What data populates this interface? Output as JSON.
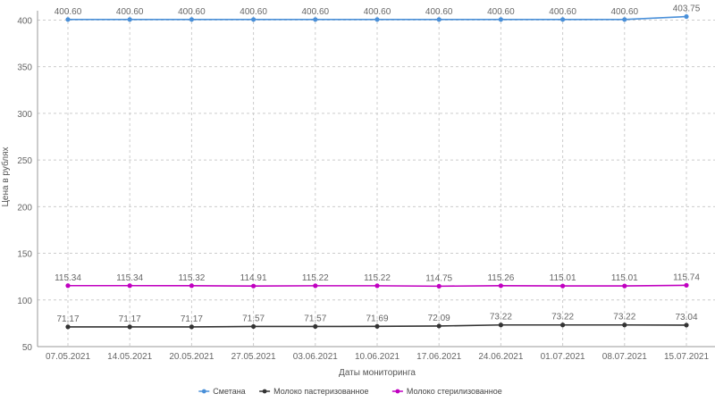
{
  "chart_data": {
    "type": "line",
    "title": "",
    "xlabel": "Даты мониторинга",
    "ylabel": "Цена в рублях",
    "ylim": [
      50,
      410
    ],
    "yticks": [
      50,
      100,
      150,
      200,
      250,
      300,
      350,
      400
    ],
    "grid": true,
    "legend_position": "bottom-center",
    "categories": [
      "07.05.2021",
      "14.05.2021",
      "20.05.2021",
      "27.05.2021",
      "03.06.2021",
      "10.06.2021",
      "17.06.2021",
      "24.06.2021",
      "01.07.2021",
      "08.07.2021",
      "15.07.2021"
    ],
    "series": [
      {
        "name": "Сметана",
        "color": "#4a90d9",
        "values": [
          400.6,
          400.6,
          400.6,
          400.6,
          400.6,
          400.6,
          400.6,
          400.6,
          400.6,
          400.6,
          403.75
        ],
        "labels": [
          "400.60",
          "400.60",
          "400.60",
          "400.60",
          "400.60",
          "400.60",
          "400.60",
          "400.60",
          "400.60",
          "400.60",
          "403.75"
        ]
      },
      {
        "name": "Молоко пастеризованное",
        "color": "#333333",
        "values": [
          71.17,
          71.17,
          71.17,
          71.57,
          71.57,
          71.69,
          72.09,
          73.22,
          73.22,
          73.22,
          73.04
        ],
        "labels": [
          "71.17",
          "71.17",
          "71.17",
          "71.57",
          "71.57",
          "71.69",
          "72.09",
          "73.22",
          "73.22",
          "73.22",
          "73.04"
        ]
      },
      {
        "name": "Молоко стерилизованное",
        "color": "#c000c0",
        "values": [
          115.34,
          115.34,
          115.32,
          114.91,
          115.22,
          115.22,
          114.75,
          115.26,
          115.01,
          115.01,
          115.74
        ],
        "labels": [
          "115.34",
          "115.34",
          "115.32",
          "114.91",
          "115.22",
          "115.22",
          "114.75",
          "115.26",
          "115.01",
          "115.01",
          "115.74"
        ]
      }
    ]
  }
}
